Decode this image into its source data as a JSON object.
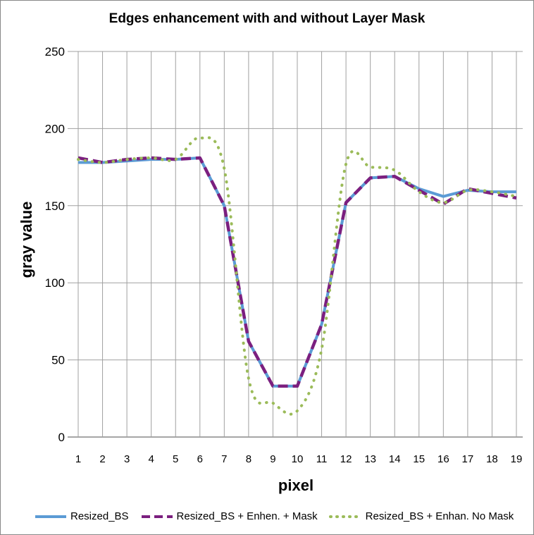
{
  "chart_data": {
    "type": "line",
    "title": "Edges enhancement with and without Layer Mask",
    "xlabel": "pixel",
    "ylabel": "gray value",
    "categories": [
      "1",
      "2",
      "3",
      "4",
      "5",
      "6",
      "7",
      "8",
      "9",
      "10",
      "11",
      "12",
      "13",
      "14",
      "15",
      "16",
      "17",
      "18",
      "19"
    ],
    "ylim": [
      0,
      250
    ],
    "yticks": [
      "0",
      "50",
      "100",
      "150",
      "200",
      "250"
    ],
    "grid": true,
    "legend": "bottom",
    "series": [
      {
        "name": "Resized_BS",
        "color": "#5b9bd5",
        "style": "solid",
        "values": [
          178,
          178,
          179,
          180,
          180,
          181,
          150,
          62,
          33,
          33,
          73,
          152,
          168,
          169,
          161,
          156,
          160,
          159,
          159
        ]
      },
      {
        "name": "Resized_BS + Enhen. + Mask",
        "color": "#7b1f7f",
        "style": "dashed",
        "values": [
          181,
          178,
          180,
          181,
          180,
          181,
          150,
          62,
          33,
          33,
          73,
          152,
          168,
          169,
          160,
          151,
          161,
          158,
          155
        ]
      },
      {
        "name": "Resized_BS + Enhan. No Mask",
        "color": "#9bbb59",
        "style": "dotted",
        "smooth": true,
        "values": [
          180,
          178,
          180,
          181,
          180,
          194,
          174,
          38,
          22,
          17,
          57,
          177,
          175,
          173,
          159,
          152,
          160,
          159,
          156
        ]
      }
    ]
  }
}
